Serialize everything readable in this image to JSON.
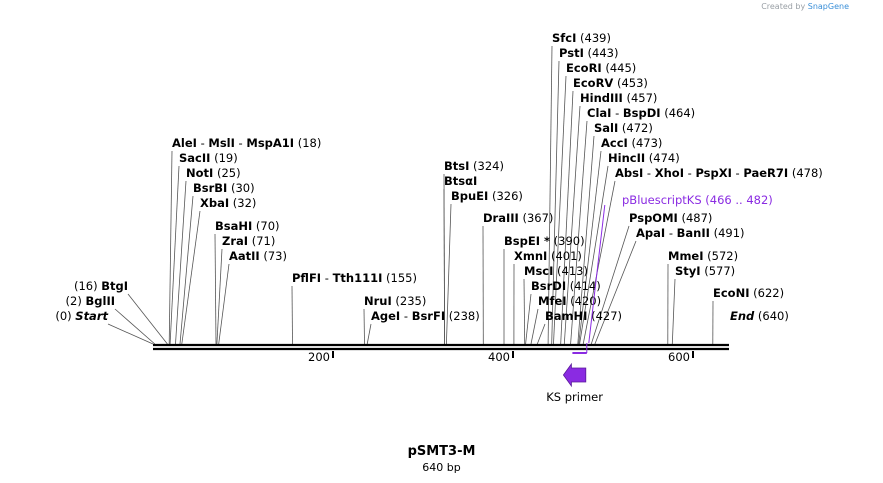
{
  "credit": {
    "prefix": "Created by",
    "brand": "SnapGene"
  },
  "plasmid": {
    "name": "pSMT3-M",
    "length": "640 bp"
  },
  "axis": {
    "min": 0,
    "max": 640,
    "ticks": [
      200,
      400,
      600
    ]
  },
  "sites": [
    {
      "parts": [
        {
          "n": "SfcI"
        }
      ],
      "pos": "(439)",
      "bp": 439
    },
    {
      "parts": [
        {
          "n": "PstI"
        }
      ],
      "pos": "(443)",
      "bp": 443
    },
    {
      "parts": [
        {
          "n": "EcoRI"
        }
      ],
      "pos": "(445)",
      "bp": 445
    },
    {
      "parts": [
        {
          "n": "EcoRV"
        }
      ],
      "pos": "(453)",
      "bp": 453
    },
    {
      "parts": [
        {
          "n": "HindIII"
        }
      ],
      "pos": "(457)",
      "bp": 457
    },
    {
      "parts": [
        {
          "n": "ClaI"
        },
        {
          "n": "BspDI"
        }
      ],
      "pos": "(464)",
      "bp": 464
    },
    {
      "parts": [
        {
          "n": "SalI"
        }
      ],
      "pos": "(472)",
      "bp": 472
    },
    {
      "parts": [
        {
          "n": "AccI"
        }
      ],
      "pos": "(473)",
      "bp": 473
    },
    {
      "parts": [
        {
          "n": "HincII"
        }
      ],
      "pos": "(474)",
      "bp": 474
    },
    {
      "parts": [
        {
          "n": "AbsI"
        },
        {
          "n": "XhoI"
        },
        {
          "n": "PspXI"
        },
        {
          "n": "PaeR7I"
        }
      ],
      "pos": "(478)",
      "bp": 478
    },
    {
      "parts": [
        {
          "n": "AleI"
        },
        {
          "n": "MslI"
        },
        {
          "n": "MspA1I"
        }
      ],
      "pos": "(18)",
      "bp": 18
    },
    {
      "parts": [
        {
          "n": "SacII"
        }
      ],
      "pos": "(19)",
      "bp": 19
    },
    {
      "parts": [
        {
          "n": "NotI"
        }
      ],
      "pos": "(25)",
      "bp": 25
    },
    {
      "parts": [
        {
          "n": "BsrBI"
        }
      ],
      "pos": "(30)",
      "bp": 30
    },
    {
      "parts": [
        {
          "n": "XbaI"
        }
      ],
      "pos": "(32)",
      "bp": 32
    },
    {
      "parts": [
        {
          "n": "BsaHI"
        }
      ],
      "pos": "(70)",
      "bp": 70
    },
    {
      "parts": [
        {
          "n": "ZraI"
        }
      ],
      "pos": "(71)",
      "bp": 71
    },
    {
      "parts": [
        {
          "n": "AatII"
        }
      ],
      "pos": "(73)",
      "bp": 73
    },
    {
      "parts": [
        {
          "n": "PflFI"
        },
        {
          "n": "Tth111I"
        }
      ],
      "pos": "(155)",
      "bp": 155
    },
    {
      "parts": [
        {
          "n": "BtsI"
        }
      ],
      "pos": "(324)",
      "bp": 324
    },
    {
      "parts": [
        {
          "n": "BtsαI"
        }
      ],
      "pos": "",
      "bp": 324
    },
    {
      "parts": [
        {
          "n": "BpuEI"
        }
      ],
      "pos": "(326)",
      "bp": 326
    },
    {
      "parts": [
        {
          "n": "DraIII"
        }
      ],
      "pos": "(367)",
      "bp": 367
    },
    {
      "parts": [
        {
          "n": "BspEI *"
        }
      ],
      "pos": "(390)",
      "bp": 390
    },
    {
      "parts": [
        {
          "n": "XmnI"
        }
      ],
      "pos": "(401)",
      "bp": 401
    },
    {
      "parts": [
        {
          "n": "MscI"
        }
      ],
      "pos": "(413)",
      "bp": 413
    },
    {
      "parts": [
        {
          "n": "BsrDI"
        }
      ],
      "pos": "(414)",
      "bp": 414
    },
    {
      "parts": [
        {
          "n": "MfeI"
        }
      ],
      "pos": "(420)",
      "bp": 420
    },
    {
      "parts": [
        {
          "n": "BamHI"
        }
      ],
      "pos": "(427)",
      "bp": 427
    },
    {
      "parts": [
        {
          "n": "PspOMI"
        }
      ],
      "pos": "(487)",
      "bp": 487
    },
    {
      "parts": [
        {
          "n": "ApaI"
        },
        {
          "n": "BanII"
        }
      ],
      "pos": "(491)",
      "bp": 491
    },
    {
      "parts": [
        {
          "n": "MmeI"
        }
      ],
      "pos": "(572)",
      "bp": 572
    },
    {
      "parts": [
        {
          "n": "StyI"
        }
      ],
      "pos": "(577)",
      "bp": 577
    },
    {
      "parts": [
        {
          "n": "EcoNI"
        }
      ],
      "pos": "(622)",
      "bp": 622
    },
    {
      "parts": [
        {
          "n": "NruI"
        }
      ],
      "pos": "(235)",
      "bp": 235
    },
    {
      "parts": [
        {
          "n": "AgeI"
        },
        {
          "n": "BsrFI"
        }
      ],
      "pos": "(238)",
      "bp": 238
    },
    {
      "parts": [
        {
          "n": "BtgI"
        }
      ],
      "pos": "(16)",
      "bp": 16
    },
    {
      "parts": [
        {
          "n": "BglII"
        }
      ],
      "pos": "(2)",
      "bp": 2
    },
    {
      "parts": [
        {
          "n": "Start",
          "italic": true
        }
      ],
      "pos": "(0)",
      "bp": 0
    },
    {
      "parts": [
        {
          "n": "End",
          "italic": true
        }
      ],
      "pos": "(640)",
      "bp": 640
    }
  ],
  "features": [
    {
      "label": "pBluescriptKS",
      "range": "(466 .. 482)",
      "start": 466,
      "end": 482
    },
    {
      "label": "KS primer",
      "start": 466,
      "end": 482
    }
  ]
}
